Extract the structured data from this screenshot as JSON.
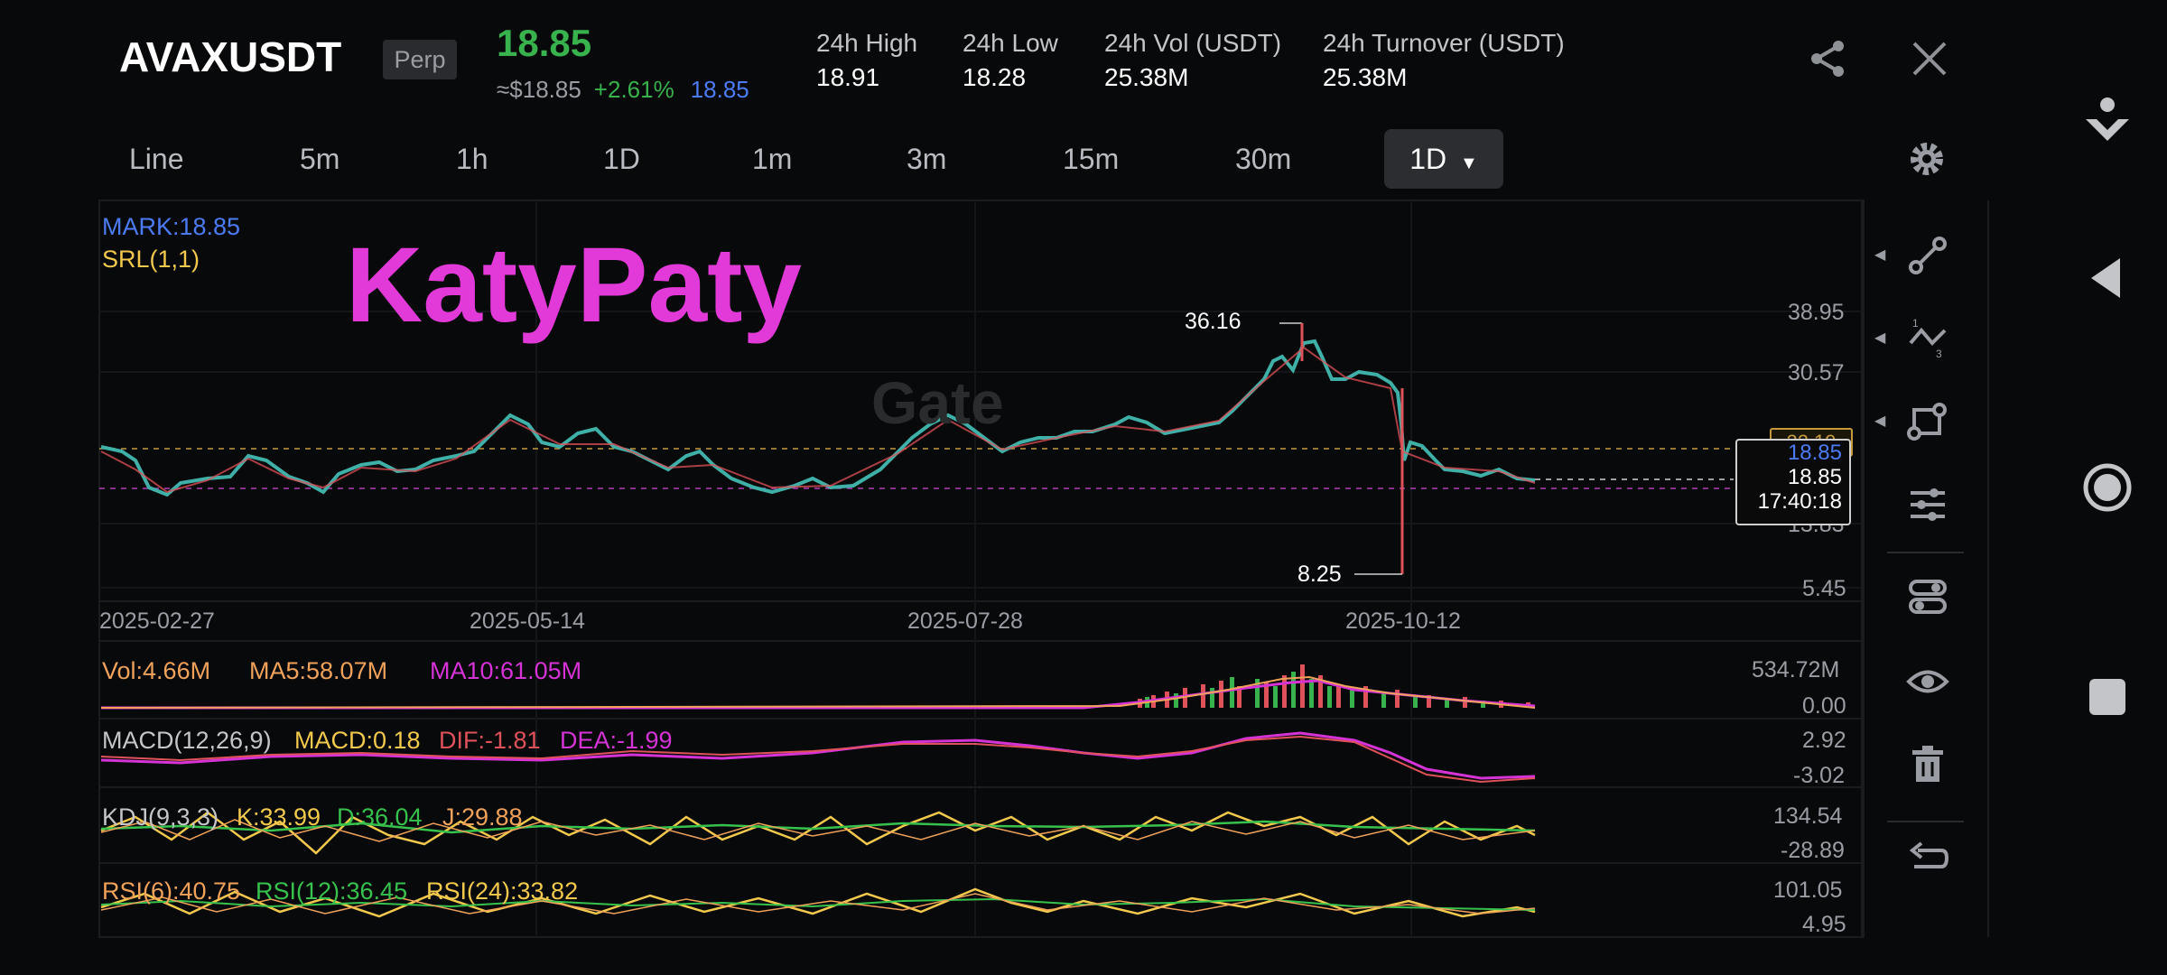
{
  "header": {
    "symbol": "AVAXUSDT",
    "contract_type": "Perp",
    "last_price": "18.85",
    "approx_price": "≈$18.85",
    "change_pct": "+2.61%",
    "mark_price": "18.85",
    "stats": [
      {
        "label": "24h High",
        "value": "18.91"
      },
      {
        "label": "24h Low",
        "value": "18.28"
      },
      {
        "label": "24h Vol (USDT)",
        "value": "25.38M"
      },
      {
        "label": "24h Turnover (USDT)",
        "value": "25.38M"
      }
    ],
    "icons": [
      "share-icon",
      "close-icon"
    ]
  },
  "timeframes": {
    "items": [
      "Line",
      "5m",
      "1h",
      "1D",
      "1m",
      "3m",
      "15m",
      "30m"
    ],
    "active": "1D",
    "settings_icon": "gear-icon"
  },
  "main_chart": {
    "mark_label": "MARK:18.85",
    "srl_label": "SRL(1,1)",
    "watermark_text": "KatyPaty",
    "brand_watermark": "Gate",
    "y_ticks": [
      "38.95",
      "30.57",
      "13.83",
      "5.45"
    ],
    "hidden_tick": "22.19",
    "x_dates": [
      "2025-02-27",
      "2025-05-14",
      "2025-07-28",
      "2025-10-12"
    ],
    "high_marker": "36.16",
    "low_marker": "8.25",
    "price_box": {
      "mark": "18.85",
      "last": "18.85",
      "countdown": "17:40:18"
    }
  },
  "volume": {
    "vol": "Vol:4.66M",
    "ma5": "MA5:58.07M",
    "ma10": "MA10:61.05M",
    "max": "534.72M",
    "min": "0.00"
  },
  "macd": {
    "title": "MACD(12,26,9)",
    "macd": "MACD:0.18",
    "dif": "DIF:-1.81",
    "dea": "DEA:-1.99",
    "max": "2.92",
    "min": "-3.02"
  },
  "kdj": {
    "title": "KDJ(9,3,3)",
    "k": "K:33.99",
    "d": "D:36.04",
    "j": "J:29.88",
    "max": "134.54",
    "min": "-28.89"
  },
  "rsi": {
    "rsi6": "RSI(6):40.75",
    "rsi12": "RSI(12):36.45",
    "rsi24": "RSI(24):33.82",
    "max": "101.05",
    "min": "4.95"
  },
  "colors": {
    "up": "#37b24d",
    "down": "#e0525a",
    "accent_blue": "#4c7cf5",
    "yellow": "#f2c94c",
    "magenta": "#d633d6",
    "orange": "#f0a25b"
  },
  "chart_data": {
    "type": "line",
    "title": "",
    "xlabel": "",
    "ylabel": "",
    "x": [
      "2025-02-27",
      "2025-05-14",
      "2025-07-28",
      "2025-10-12",
      "2025-11-20"
    ],
    "ylim": [
      5.45,
      38.95
    ],
    "approx_close": [
      22.0,
      22.5,
      20.5,
      33.0,
      18.85
    ],
    "high": 36.16,
    "low": 8.25
  },
  "right_tools": [
    "trend-line-icon",
    "fib-icon",
    "shape-icon",
    "adjust-icon",
    "indicator-icon",
    "eye-icon",
    "trash-icon",
    "undo-icon"
  ],
  "system_nav": [
    "download-icon",
    "back-icon",
    "home-icon",
    "recents-icon"
  ]
}
